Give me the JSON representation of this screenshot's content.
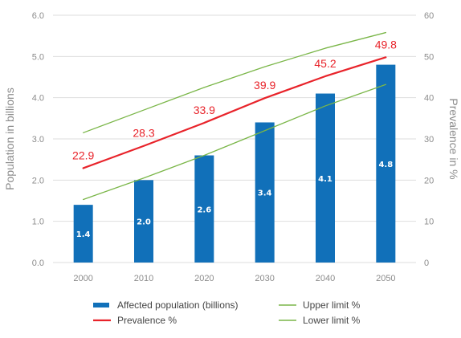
{
  "chart_data": {
    "type": "bar",
    "categories": [
      "2000",
      "2010",
      "2020",
      "2030",
      "2040",
      "2050"
    ],
    "series": [
      {
        "name": "Affected population (billions)",
        "type": "bar",
        "axis": "left",
        "color": "#1170b9",
        "values": [
          1.4,
          2.0,
          2.6,
          3.4,
          4.1,
          4.8
        ],
        "value_labels": [
          "1.4",
          "2.0",
          "2.6",
          "3.4",
          "4.1",
          "4.8"
        ]
      },
      {
        "name": "Prevalence %",
        "type": "line",
        "axis": "right",
        "color": "#e8232a",
        "values": [
          22.9,
          28.3,
          33.9,
          39.9,
          45.2,
          49.8
        ],
        "value_labels": [
          "22.9",
          "28.3",
          "33.9",
          "39.9",
          "45.2",
          "49.8"
        ]
      },
      {
        "name": "Upper limit %",
        "type": "line",
        "axis": "right",
        "color": "#7ab648",
        "values": [
          31.5,
          37.0,
          42.5,
          47.5,
          52.0,
          55.8
        ]
      },
      {
        "name": "Lower limit %",
        "type": "line",
        "axis": "right",
        "color": "#7ab648",
        "values": [
          15.3,
          20.5,
          26.0,
          32.0,
          38.0,
          43.2
        ]
      }
    ],
    "ylabel": "Population in billions",
    "y2label": "Prevalence in %",
    "ylim": [
      0,
      6
    ],
    "y2lim": [
      0,
      60
    ],
    "yticks": [
      "0.0",
      "1.0",
      "2.0",
      "3.0",
      "4.0",
      "5.0",
      "6.0"
    ],
    "y2ticks": [
      "0",
      "10",
      "20",
      "30",
      "40",
      "50",
      "60"
    ],
    "grid": true,
    "legend_position": "bottom"
  }
}
